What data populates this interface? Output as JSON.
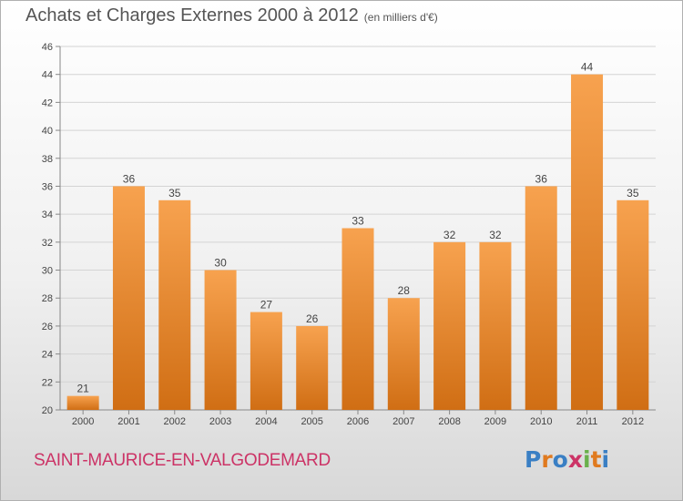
{
  "header": {
    "title": "Achats et Charges Externes 2000 à 2012",
    "subtitle": "(en milliers d'€)"
  },
  "footer": {
    "commune": "SAINT-MAURICE-EN-VALGODEMARD",
    "logo_text": "Proxiti",
    "logo_colors": [
      "#3a7fc4",
      "#e07a1f",
      "#3a7fc4",
      "#cc3366",
      "#6ab04c",
      "#e07a1f",
      "#3a7fc4"
    ]
  },
  "chart_data": {
    "type": "bar",
    "title": "Achats et Charges Externes 2000 à 2012",
    "xlabel": "",
    "ylabel": "",
    "categories": [
      "2000",
      "2001",
      "2002",
      "2003",
      "2004",
      "2005",
      "2006",
      "2007",
      "2008",
      "2009",
      "2010",
      "2011",
      "2012"
    ],
    "values": [
      21,
      36,
      35,
      30,
      27,
      26,
      33,
      28,
      32,
      32,
      36,
      44,
      35
    ],
    "ylim": [
      20,
      46
    ],
    "yticks": [
      20,
      22,
      24,
      26,
      28,
      30,
      32,
      34,
      36,
      38,
      40,
      42,
      44,
      46
    ],
    "grid": true,
    "legend": "none",
    "bar_color_light": "#f7a24f",
    "bar_color_dark": "#d06e14"
  }
}
